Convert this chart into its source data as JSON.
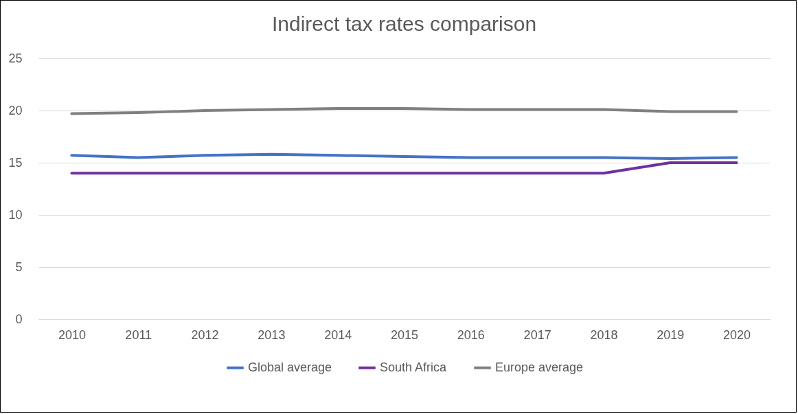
{
  "chart_data": {
    "type": "line",
    "title": "Indirect tax rates comparison",
    "categories": [
      "2010",
      "2011",
      "2012",
      "2013",
      "2014",
      "2015",
      "2016",
      "2017",
      "2018",
      "2019",
      "2020"
    ],
    "series": [
      {
        "name": "Global average",
        "color": "#4472c4",
        "values": [
          15.7,
          15.5,
          15.7,
          15.8,
          15.7,
          15.6,
          15.5,
          15.5,
          15.5,
          15.4,
          15.5
        ]
      },
      {
        "name": "South Africa",
        "color": "#7030a0",
        "values": [
          14,
          14,
          14,
          14,
          14,
          14,
          14,
          14,
          14,
          15,
          15
        ]
      },
      {
        "name": "Europe average",
        "color": "#808080",
        "values": [
          19.7,
          19.8,
          20.0,
          20.1,
          20.2,
          20.2,
          20.1,
          20.1,
          20.1,
          19.9,
          19.9
        ]
      }
    ],
    "ylim": [
      0,
      25
    ],
    "yticks": [
      0,
      5,
      10,
      15,
      20,
      25
    ],
    "grid": "y",
    "legend": "bottom",
    "marker": "none",
    "line_style": "solid"
  }
}
